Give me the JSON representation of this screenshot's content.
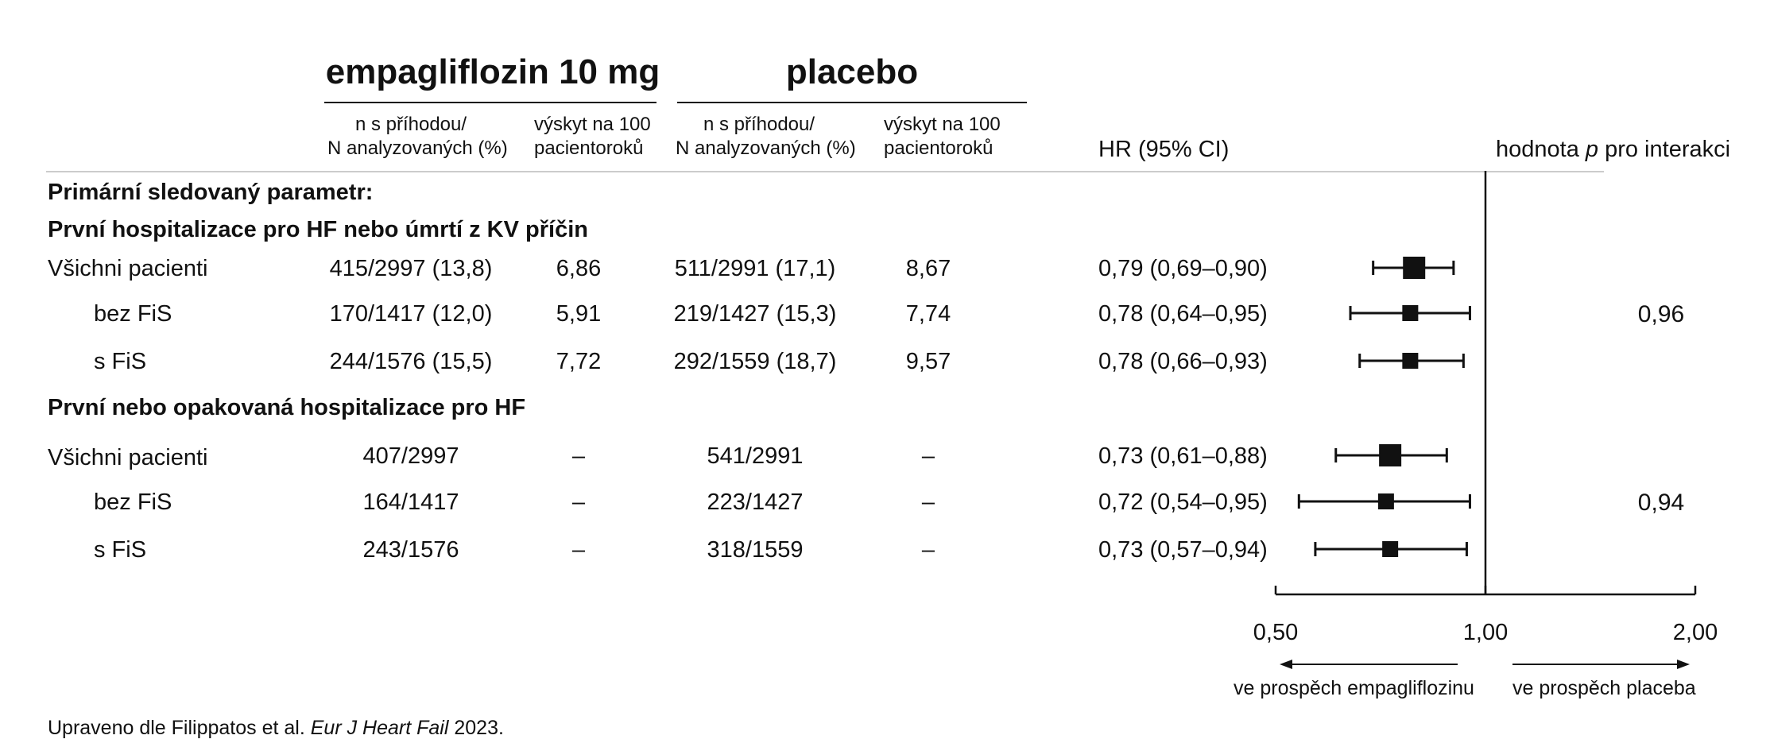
{
  "headers": {
    "empa_title": "empagliflozin 10 mg",
    "placebo_title": "placebo",
    "empa_n_line1": "n s příhodou/",
    "empa_n_line2": "N analyzovaných (%)",
    "empa_rate_line1": "výskyt na 100",
    "empa_rate_line2": "pacientoroků",
    "pl_n_line1": "n s příhodou/",
    "pl_n_line2": "N analyzovaných (%)",
    "pl_rate_line1": "výskyt na 100",
    "pl_rate_line2": "pacientoroků",
    "hr": "HR (95% CI)",
    "p_pre": "hodnota ",
    "p_italic": "p",
    "p_post": " pro interakci"
  },
  "sections": {
    "primary": "Primární sledovaný parametr:",
    "s1": "První hospitalizace pro HF nebo úmrtí z KV příčin",
    "s2": "První nebo opakovaná hospitalizace pro HF"
  },
  "rows": [
    {
      "label": "Všichni pacienti",
      "empa_n": "415/2997 (13,8)",
      "empa_rate": "6,86",
      "pl_n": "511/2991 (17,1)",
      "pl_rate": "8,67",
      "hr_text": "0,79 (0,69–0,90)",
      "p": ""
    },
    {
      "label": "bez FiS",
      "empa_n": "170/1417 (12,0)",
      "empa_rate": "5,91",
      "pl_n": "219/1427 (15,3)",
      "pl_rate": "7,74",
      "hr_text": "0,78 (0,64–0,95)",
      "p": "0,96"
    },
    {
      "label": "s FiS",
      "empa_n": "244/1576 (15,5)",
      "empa_rate": "7,72",
      "pl_n": "292/1559 (18,7)",
      "pl_rate": "9,57",
      "hr_text": "0,78 (0,66–0,93)",
      "p": ""
    },
    {
      "label": "Všichni pacienti",
      "empa_n": "407/2997",
      "empa_rate": "–",
      "pl_n": "541/2991",
      "pl_rate": "–",
      "hr_text": "0,73 (0,61–0,88)",
      "p": ""
    },
    {
      "label": "bez FiS",
      "empa_n": "164/1417",
      "empa_rate": "–",
      "pl_n": "223/1427",
      "pl_rate": "–",
      "hr_text": "0,72 (0,54–0,95)",
      "p": "0,94"
    },
    {
      "label": "s FiS",
      "empa_n": "243/1576",
      "empa_rate": "–",
      "pl_n": "318/1559",
      "pl_rate": "–",
      "hr_text": "0,73 (0,57–0,94)",
      "p": ""
    }
  ],
  "chart_data": {
    "type": "scatter",
    "subtype": "forest",
    "x_scale": "log",
    "xlim": [
      0.5,
      2.0
    ],
    "reference_line": 1.0,
    "ticks": [
      "0,50",
      "1,00",
      "2,00"
    ],
    "tick_values": [
      0.5,
      1.0,
      2.0
    ],
    "points": [
      {
        "hr": 0.79,
        "lo": 0.69,
        "hi": 0.9,
        "size": "large"
      },
      {
        "hr": 0.78,
        "lo": 0.64,
        "hi": 0.95,
        "size": "medium"
      },
      {
        "hr": 0.78,
        "lo": 0.66,
        "hi": 0.93,
        "size": "medium"
      },
      {
        "hr": 0.73,
        "lo": 0.61,
        "hi": 0.88,
        "size": "large"
      },
      {
        "hr": 0.72,
        "lo": 0.54,
        "hi": 0.95,
        "size": "medium"
      },
      {
        "hr": 0.73,
        "lo": 0.57,
        "hi": 0.94,
        "size": "medium"
      }
    ],
    "favours_left": "ve prospěch empagliflozinu",
    "favours_right": "ve prospěch placeba",
    "colors": {
      "ink": "#111111",
      "divider": "#cccccc"
    }
  },
  "footer": {
    "pre": "Upraveno dle Filippatos et al. ",
    "journal": "Eur J Heart Fail",
    "post": " 2023."
  }
}
